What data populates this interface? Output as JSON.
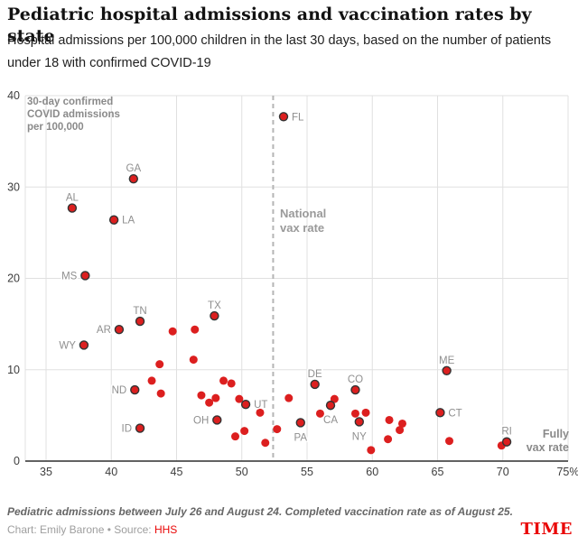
{
  "header": {
    "title": "Pediatric hospital admissions and vaccination rates by state",
    "subtitle": "Hospital admissions per 100,000 children in the last 30 days, based on the number of patients under 18 with confirmed COVID-19"
  },
  "footer": {
    "footnote": "Pediatric admissions between July 26 and August 24. Completed vaccination rate as of August 25.",
    "credit_prefix": "Chart: Emily Barone • Source: ",
    "credit_source": "HHS",
    "logo": "TIME"
  },
  "colors": {
    "dot_red": "#dc1f1f",
    "dot_ring": "#333333",
    "accent_red": "#e90606",
    "state_label_gray": "#8f8f8f",
    "grid_gray": "#e0e0e0",
    "axis_dark": "#2f2f2f",
    "tick_label": "#3d3d3d",
    "dashed_line": "#b5b5b5"
  },
  "chart_data": {
    "type": "scatter",
    "title": "Pediatric hospital admissions and vaccination rates by state",
    "xlabel": "Fully vax rate",
    "ylabel": "30-day confirmed COVID admissions per 100,000",
    "x_ticks": [
      35,
      40,
      45,
      50,
      55,
      60,
      65,
      70,
      75
    ],
    "x_unit_last_tick": "%",
    "y_ticks": [
      0,
      10,
      20,
      30,
      40
    ],
    "xlim": [
      33.4,
      75
    ],
    "ylim": [
      0,
      40
    ],
    "grid": true,
    "reference_line": {
      "value": 52.4,
      "label": "National vax rate"
    },
    "annotations": {
      "y_axis_note": "30-day confirmed COVID admissions per 100,000",
      "reference_note": "National vax rate",
      "x_axis_note": "Fully vax rate"
    },
    "labeled_points": [
      {
        "state": "FL",
        "x": 53.2,
        "y": 37.7,
        "label_position": "right"
      },
      {
        "state": "GA",
        "x": 41.7,
        "y": 30.9,
        "label_position": "above"
      },
      {
        "state": "AL",
        "x": 37.0,
        "y": 27.7,
        "label_position": "above"
      },
      {
        "state": "LA",
        "x": 40.2,
        "y": 26.4,
        "label_position": "right"
      },
      {
        "state": "MS",
        "x": 38.0,
        "y": 20.3,
        "label_position": "left"
      },
      {
        "state": "TX",
        "x": 47.9,
        "y": 15.9,
        "label_position": "above"
      },
      {
        "state": "TN",
        "x": 42.2,
        "y": 15.3,
        "label_position": "above"
      },
      {
        "state": "AR",
        "x": 40.6,
        "y": 14.4,
        "label_position": "left"
      },
      {
        "state": "WY",
        "x": 37.9,
        "y": 12.7,
        "label_position": "left"
      },
      {
        "state": "ND",
        "x": 41.8,
        "y": 7.8,
        "label_position": "left"
      },
      {
        "state": "ID",
        "x": 42.2,
        "y": 3.6,
        "label_position": "left"
      },
      {
        "state": "OH",
        "x": 48.1,
        "y": 4.5,
        "label_position": "left"
      },
      {
        "state": "UT",
        "x": 50.3,
        "y": 6.2,
        "label_position": "right"
      },
      {
        "state": "PA",
        "x": 54.5,
        "y": 4.2,
        "label_position": "below"
      },
      {
        "state": "DE",
        "x": 55.6,
        "y": 8.4,
        "label_position": "above"
      },
      {
        "state": "CA",
        "x": 56.8,
        "y": 6.1,
        "label_position": "below"
      },
      {
        "state": "CO",
        "x": 58.7,
        "y": 7.8,
        "label_position": "above"
      },
      {
        "state": "NY",
        "x": 59.0,
        "y": 4.3,
        "label_position": "below"
      },
      {
        "state": "ME",
        "x": 65.7,
        "y": 9.9,
        "label_position": "above"
      },
      {
        "state": "CT",
        "x": 65.2,
        "y": 5.3,
        "label_position": "right"
      },
      {
        "state": "RI",
        "x": 70.3,
        "y": 2.1,
        "label_position": "above"
      }
    ],
    "unlabeled_points": [
      [
        44.7,
        14.2
      ],
      [
        46.4,
        14.4
      ],
      [
        46.3,
        11.1
      ],
      [
        43.7,
        10.6
      ],
      [
        43.1,
        8.8
      ],
      [
        43.8,
        7.4
      ],
      [
        46.9,
        7.2
      ],
      [
        47.5,
        6.4
      ],
      [
        48.0,
        6.9
      ],
      [
        48.6,
        8.8
      ],
      [
        49.2,
        8.5
      ],
      [
        49.8,
        6.8
      ],
      [
        51.4,
        5.3
      ],
      [
        49.5,
        2.7
      ],
      [
        50.2,
        3.3
      ],
      [
        51.8,
        2.0
      ],
      [
        52.7,
        3.5
      ],
      [
        53.6,
        6.9
      ],
      [
        56.0,
        5.2
      ],
      [
        57.1,
        6.8
      ],
      [
        58.7,
        5.2
      ],
      [
        59.5,
        5.3
      ],
      [
        61.3,
        4.5
      ],
      [
        62.3,
        4.1
      ],
      [
        62.1,
        3.4
      ],
      [
        61.2,
        2.4
      ],
      [
        59.9,
        1.2
      ],
      [
        65.9,
        2.2
      ],
      [
        69.9,
        1.7
      ]
    ]
  }
}
